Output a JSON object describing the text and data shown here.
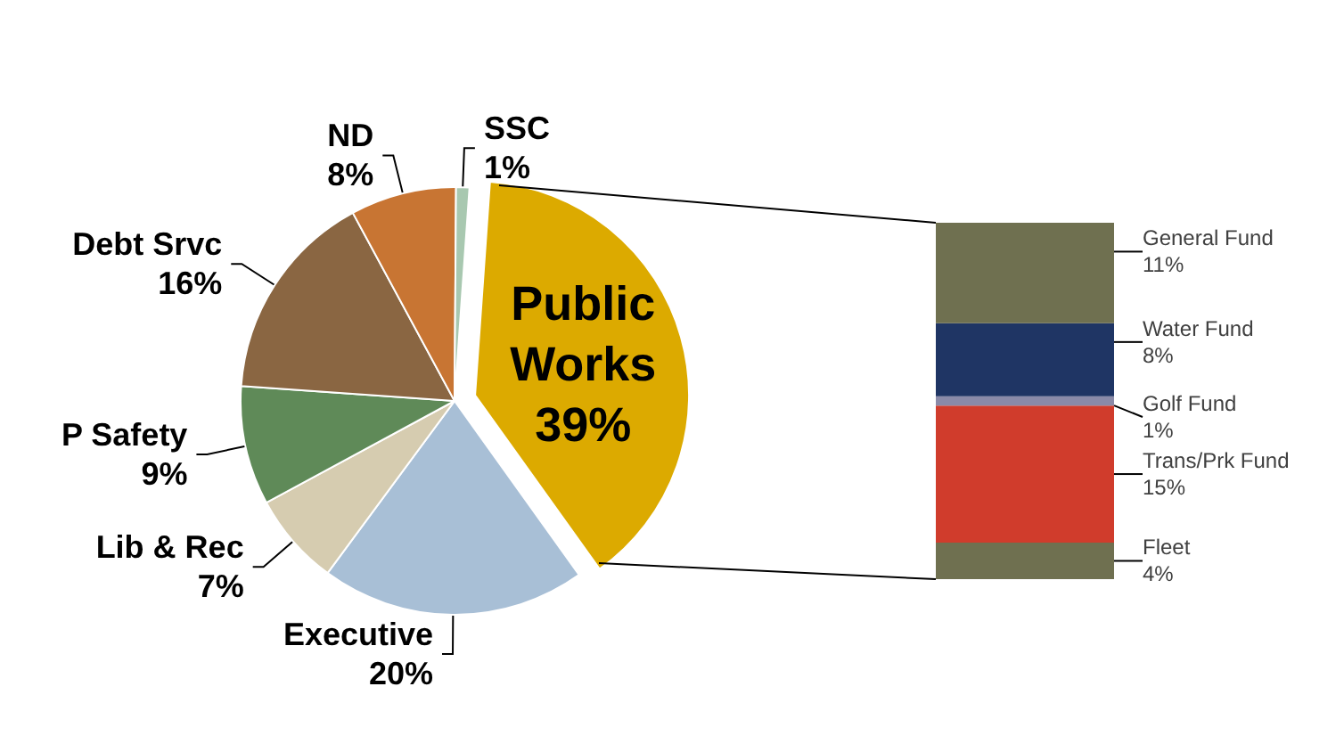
{
  "chart_data": [
    {
      "type": "pie",
      "categories": [
        "Public Works",
        "Executive",
        "Lib & Rec",
        "P Safety",
        "Debt Srvc",
        "ND",
        "SSC"
      ],
      "values": [
        39,
        20,
        7,
        9,
        16,
        8,
        1
      ],
      "value_labels": [
        "39%",
        "20%",
        "7%",
        "9%",
        "16%",
        "8%",
        "1%"
      ],
      "colors": [
        "#dcaa00",
        "#a8bfd6",
        "#d6ccb0",
        "#5f8a58",
        "#8a6642",
        "#c87533",
        "#a8c8b0"
      ],
      "legend": false
    },
    {
      "type": "bar",
      "stacked": true,
      "categories": [
        null
      ],
      "legend": false,
      "series": [
        {
          "name": "Fleet",
          "color": "#6f7050",
          "values": [
            4
          ],
          "value_labels": [
            "4%"
          ]
        },
        {
          "name": "Trans/Prk Fund",
          "color": "#d03c2c",
          "values": [
            15
          ],
          "value_labels": [
            "15%"
          ]
        },
        {
          "name": "Golf Fund",
          "color": "#8a8aa8",
          "values": [
            1
          ],
          "value_labels": [
            "1%"
          ]
        },
        {
          "name": "Water Fund",
          "color": "#1f3564",
          "values": [
            8
          ],
          "value_labels": [
            "8%"
          ]
        },
        {
          "name": "General Fund",
          "color": "#6f7050",
          "values": [
            11
          ],
          "value_labels": [
            "11%"
          ]
        }
      ]
    }
  ]
}
